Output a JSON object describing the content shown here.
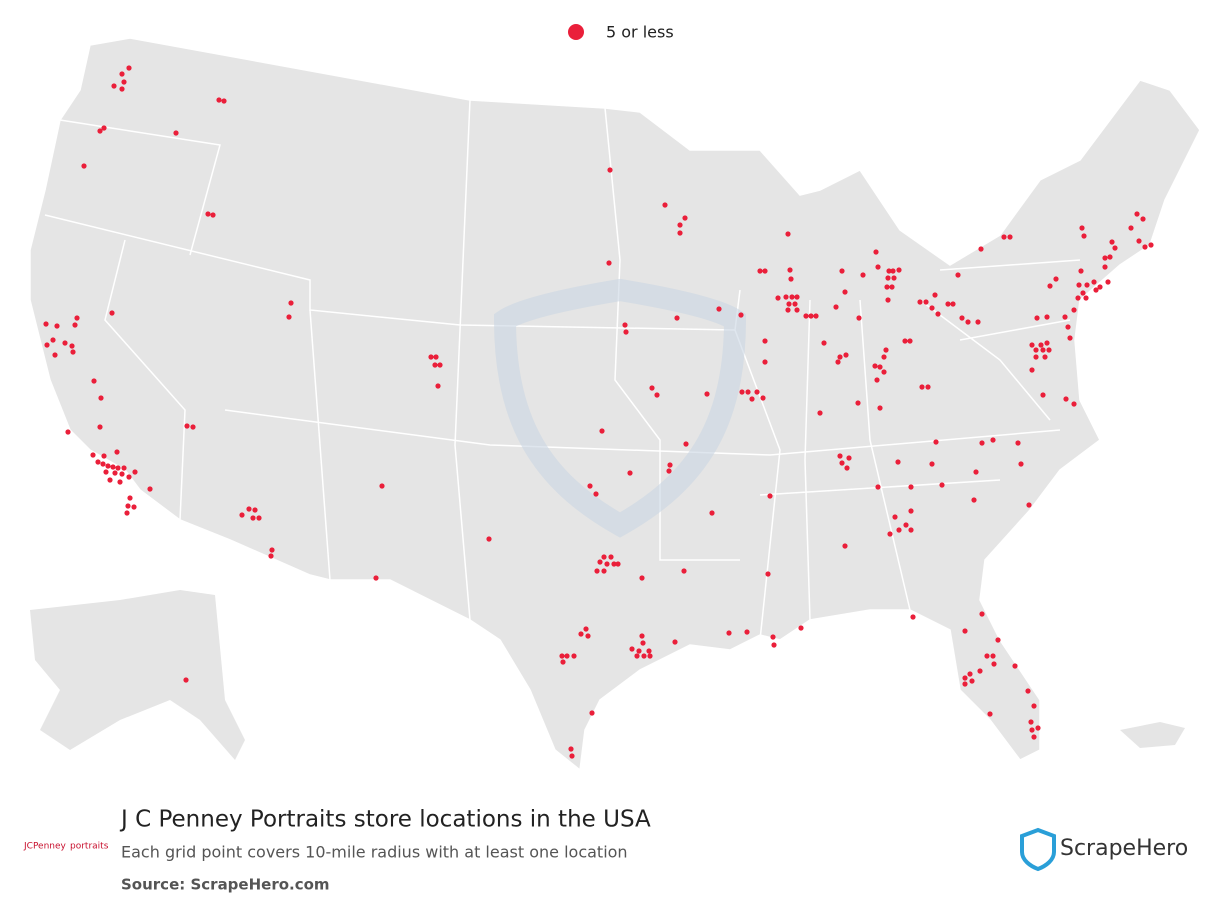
{
  "legend": {
    "label": "5 or less"
  },
  "title": "J C Penney Portraits store locations in the USA",
  "subtitle": "Each grid point covers 10-mile radius with at least one location",
  "source": "Source: ScrapeHero.com",
  "brand": "ScrapeHero",
  "client_logo": {
    "name": "JCPenney",
    "tag": "portraits"
  }
}
